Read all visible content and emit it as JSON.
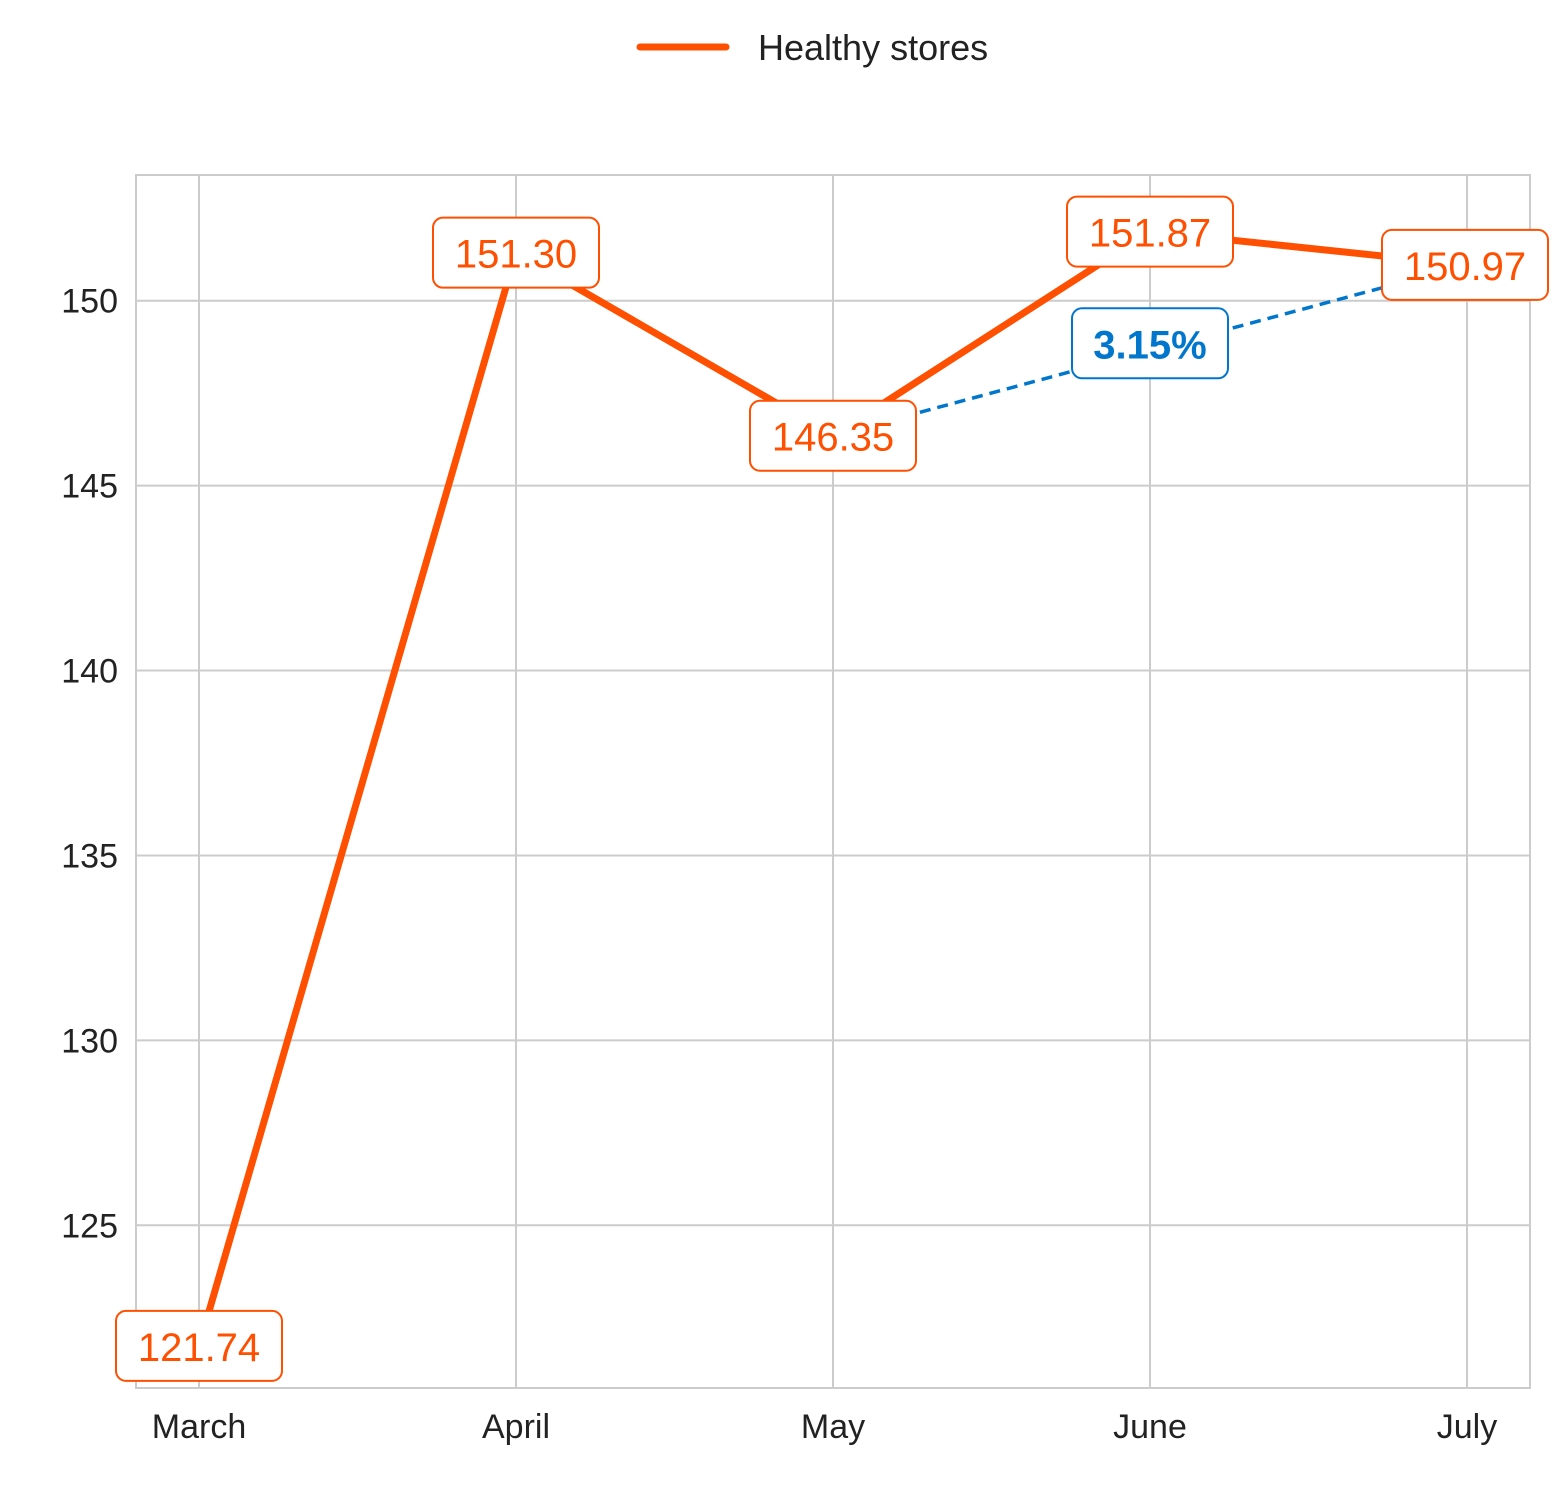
{
  "chart_data": {
    "type": "line",
    "categories": [
      "March",
      "April",
      "May",
      "June",
      "July"
    ],
    "series": [
      {
        "name": "Healthy stores",
        "values": [
          121.74,
          151.3,
          146.35,
          151.87,
          150.97
        ],
        "labels": [
          "121.74",
          "151.30",
          "146.35",
          "151.87",
          "150.97"
        ],
        "color": "#ff4f00"
      }
    ],
    "annotation": {
      "text": "3.15%",
      "from_category": "May",
      "to_category": "July",
      "color": "#0077cc"
    },
    "yticks": [
      125,
      130,
      135,
      140,
      145,
      150
    ],
    "ylim": [
      120.6,
      153.4
    ],
    "grid": true,
    "legend_position": "top-center",
    "title": "",
    "xlabel": "",
    "ylabel": ""
  }
}
